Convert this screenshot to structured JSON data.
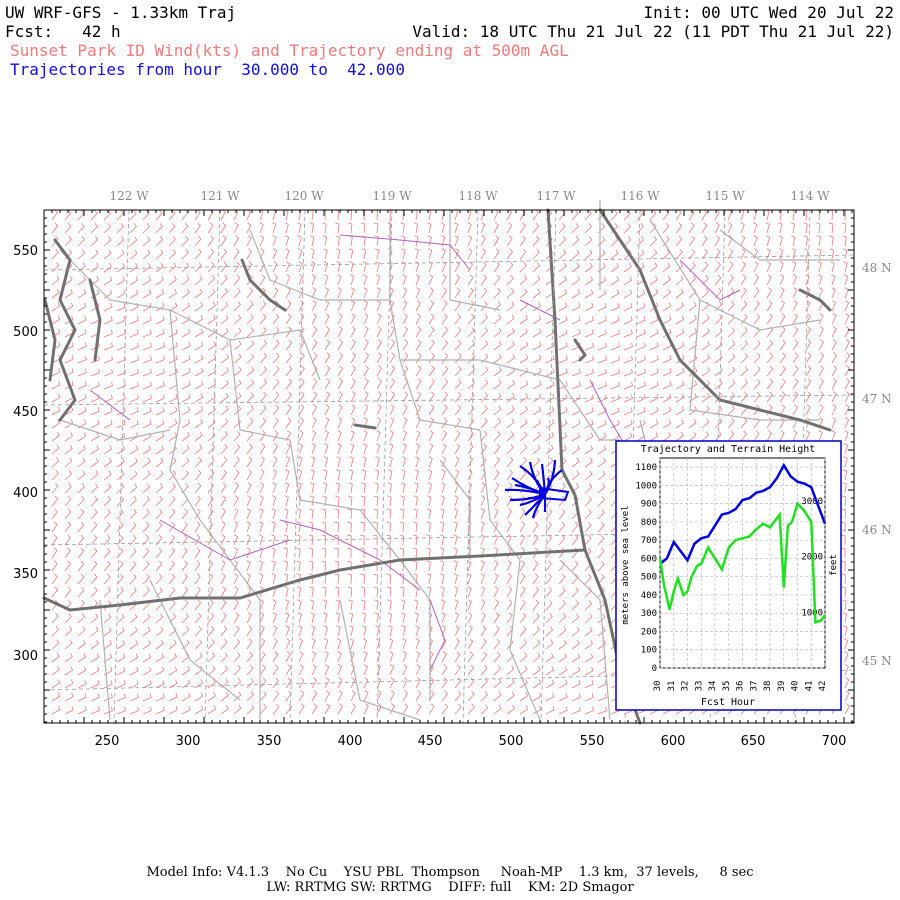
{
  "header": {
    "title": "UW WRF-GFS - 1.33km Traj",
    "init": "Init: 00 UTC Wed 20 Jul 22",
    "fcst": "Fcst:   42 h",
    "valid": "Valid: 18 UTC Thu 21 Jul 22 (11 PDT Thu 21 Jul 22)",
    "subtitle": "Sunset Park ID Wind(kts) and Trajectory ending at 500m AGL",
    "traj_range": "Trajectories from hour  30.000 to  42.000"
  },
  "map": {
    "lon_labels": [
      "122 W",
      "121 W",
      "120 W",
      "119 W",
      "118 W",
      "117 W",
      "116 W",
      "115 W",
      "114 W"
    ],
    "lat_labels": [
      "48 N",
      "47 N",
      "46 N",
      "45 N"
    ],
    "x_ticks": [
      "250",
      "300",
      "350",
      "400",
      "450",
      "500",
      "550",
      "600",
      "650",
      "700"
    ],
    "y_ticks": [
      "550",
      "500",
      "450",
      "400",
      "350",
      "300"
    ],
    "colors": {
      "barb": "#f27a7a",
      "border": "#707070",
      "county": "#b0b0b0",
      "river": "#b060c0",
      "traj": "#0000e0"
    }
  },
  "inset": {
    "title": "Trajectory and Terrain Height",
    "xlabel": "Fcst Hour",
    "ylabel_left": "meters above sea level",
    "ylabel_right": "feet",
    "x_ticks": [
      "30",
      "31",
      "32",
      "33",
      "34",
      "35",
      "36",
      "37",
      "38",
      "39",
      "40",
      "41",
      "42"
    ],
    "y_ticks_left": [
      "0",
      "100",
      "200",
      "300",
      "400",
      "500",
      "600",
      "700",
      "800",
      "900",
      "1000",
      "1100"
    ],
    "y_ticks_right": [
      "1000",
      "2000",
      "3000"
    ],
    "ylim": [
      0,
      1150
    ],
    "xlim": [
      30,
      42
    ],
    "series": [
      {
        "color": "#0000e0",
        "x": [
          30,
          30.5,
          31,
          31.5,
          32,
          32.5,
          33,
          33.5,
          34,
          34.5,
          35,
          35.5,
          36,
          36.5,
          37,
          37.5,
          38,
          38.5,
          39,
          39.5,
          40,
          40.5,
          41,
          41.5,
          42
        ],
        "y": [
          570,
          600,
          690,
          640,
          590,
          680,
          710,
          720,
          780,
          840,
          850,
          870,
          920,
          930,
          960,
          970,
          990,
          1040,
          1110,
          1050,
          1020,
          1010,
          990,
          890,
          790
        ]
      },
      {
        "color": "#20e020",
        "x": [
          30,
          30.3,
          30.7,
          31,
          31.3,
          31.7,
          32,
          32.3,
          32.7,
          33,
          33.5,
          34,
          34.5,
          35,
          35.5,
          36,
          36.5,
          37,
          37.5,
          38,
          38.3,
          38.7,
          39,
          39.3,
          39.6,
          40,
          40.5,
          41,
          41.3,
          41.7,
          42
        ],
        "y": [
          600,
          450,
          320,
          420,
          490,
          400,
          420,
          500,
          560,
          570,
          660,
          600,
          540,
          660,
          700,
          710,
          720,
          760,
          790,
          770,
          800,
          840,
          440,
          780,
          800,
          900,
          860,
          800,
          250,
          260,
          290
        ]
      }
    ]
  },
  "footer": {
    "line1": "Model Info: V4.1.3    No Cu    YSU PBL  Thompson     Noah-MP    1.3 km,  37 levels,     8 sec",
    "line2": "LW: RRTMG SW: RRTMG    DIFF: full    KM: 2D Smagor"
  }
}
